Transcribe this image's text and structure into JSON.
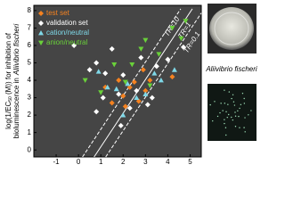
{
  "chart_data": {
    "type": "scatter",
    "xlabel": "logD",
    "xlabel_sub": "lipw",
    "xlabel_suffix": "(pH7)",
    "ylabel_pre": "log(1/EC",
    "ylabel_sub": "50",
    "ylabel_post": " (M)) for inhibition of",
    "ylabel_line2": "bioluminescence in",
    "ylabel_line2_italic": "Aliivibrio fischeri",
    "xlim": [
      -2,
      5.5
    ],
    "xticks": [
      -1,
      0,
      1,
      2,
      3,
      4,
      5
    ],
    "ylim": [
      -0.4,
      8.3
    ],
    "yticks": [
      0,
      1,
      2,
      3,
      4,
      5,
      6,
      7,
      8
    ],
    "legend": "top-left",
    "lines": [
      {
        "name": "TR=10",
        "dashed": true,
        "x": [
          0.18,
          4.58
        ],
        "values": [
          -0.4,
          8.1
        ]
      },
      {
        "name": "TR=1",
        "dashed": false,
        "x": [
          0.7,
          5.1
        ],
        "values": [
          -0.4,
          8.1
        ]
      },
      {
        "name": "TR=0.1",
        "dashed": true,
        "x": [
          1.22,
          5.5
        ],
        "values": [
          -0.4,
          7.86
        ]
      }
    ],
    "series": [
      {
        "name": "test set",
        "color": "#f58220",
        "marker": "diamond",
        "x": [
          1.2,
          1.8,
          2.0,
          2.3,
          2.5,
          2.7,
          3.0,
          3.2,
          4.2,
          1.5,
          2.9,
          2.1
        ],
        "values": [
          3.6,
          4.0,
          3.1,
          3.6,
          3.9,
          2.8,
          3.4,
          4.0,
          4.2,
          2.7,
          4.6,
          2.5
        ]
      },
      {
        "name": "validation set",
        "color": "#ffffff",
        "marker": "diamond",
        "x": [
          -0.2,
          0.5,
          0.8,
          1.2,
          1.5,
          1.8,
          2.0,
          2.3,
          2.6,
          2.8,
          3.1,
          3.3,
          3.5,
          4.0,
          4.7,
          0.8,
          1.1,
          1.9
        ],
        "values": [
          6.0,
          4.6,
          5.0,
          4.4,
          5.8,
          3.2,
          4.3,
          2.4,
          3.4,
          5.3,
          2.6,
          3.0,
          4.8,
          5.2,
          5.9,
          2.2,
          3.0,
          1.4
        ]
      },
      {
        "name": "cation/neutral",
        "color": "#7fd8e8",
        "marker": "triangle-up",
        "x": [
          0.9,
          1.3,
          1.7,
          2.2,
          2.6,
          3.0,
          3.4,
          2.0,
          4.3,
          3.7
        ],
        "values": [
          4.5,
          3.6,
          3.5,
          3.8,
          3.0,
          3.2,
          4.4,
          2.0,
          4.6,
          4.0
        ]
      },
      {
        "name": "anion/neutral",
        "color": "#6ad13a",
        "marker": "triangle-down",
        "x": [
          0.3,
          1.0,
          1.6,
          2.4,
          2.8,
          3.0,
          3.6,
          4.2,
          4.6,
          2.1,
          3.2,
          4.8
        ],
        "values": [
          4.0,
          3.3,
          4.9,
          4.9,
          5.8,
          6.3,
          5.5,
          7.0,
          6.4,
          3.9,
          3.7,
          7.4
        ]
      }
    ]
  },
  "photo_caption": "Aliivibrio fischeri"
}
